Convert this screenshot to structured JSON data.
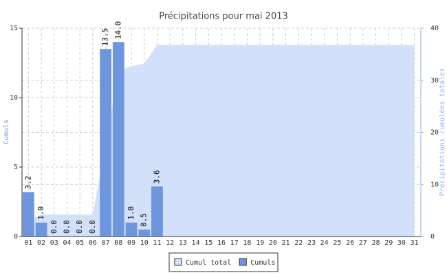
{
  "chart_data": {
    "type": "bar",
    "title": "Précipitations pour mai 2013",
    "categories": [
      "01",
      "02",
      "03",
      "04",
      "05",
      "06",
      "07",
      "08",
      "09",
      "10",
      "11",
      "12",
      "13",
      "14",
      "15",
      "16",
      "17",
      "18",
      "19",
      "20",
      "21",
      "22",
      "23",
      "24",
      "25",
      "26",
      "27",
      "28",
      "29",
      "30",
      "31"
    ],
    "ylabel": "Cumuls",
    "y2label": "Précipitations cumulées totales",
    "ylim": [
      0,
      15
    ],
    "yticks": [
      0,
      5,
      10,
      15
    ],
    "y2lim": [
      0,
      40
    ],
    "y2ticks": [
      0,
      10,
      20,
      30,
      40
    ],
    "grid": true,
    "series": [
      {
        "name": "Cumul total",
        "type": "area",
        "axis": "y2",
        "color": "#d2e0f9",
        "values": [
          3.2,
          4.2,
          4.2,
          4.2,
          4.2,
          4.2,
          17.7,
          31.7,
          32.7,
          33.2,
          36.8,
          36.8,
          36.8,
          36.8,
          36.8,
          36.8,
          36.8,
          36.8,
          36.8,
          36.8,
          36.8,
          36.8,
          36.8,
          36.8,
          36.8,
          36.8,
          36.8,
          36.8,
          36.8,
          36.8,
          36.8
        ]
      },
      {
        "name": "Cumuls",
        "type": "bar",
        "color": "#6f96dc",
        "values": [
          3.2,
          1,
          0,
          0,
          0,
          0,
          13.5,
          14,
          1,
          0.5,
          3.6,
          null,
          null,
          null,
          null,
          null,
          null,
          null,
          null,
          null,
          null,
          null,
          null,
          null,
          null,
          null,
          null,
          null,
          null,
          null,
          null
        ],
        "value_labels": [
          "3.2",
          "1.0",
          "0.0",
          "0.0",
          "0.0",
          "0.0",
          "13.5",
          "14.0",
          "1.0",
          "0.5",
          "3.6",
          null,
          null,
          null,
          null,
          null,
          null,
          null,
          null,
          null,
          null,
          null,
          null,
          null,
          null,
          null,
          null,
          null,
          null,
          null,
          null
        ]
      }
    ]
  }
}
